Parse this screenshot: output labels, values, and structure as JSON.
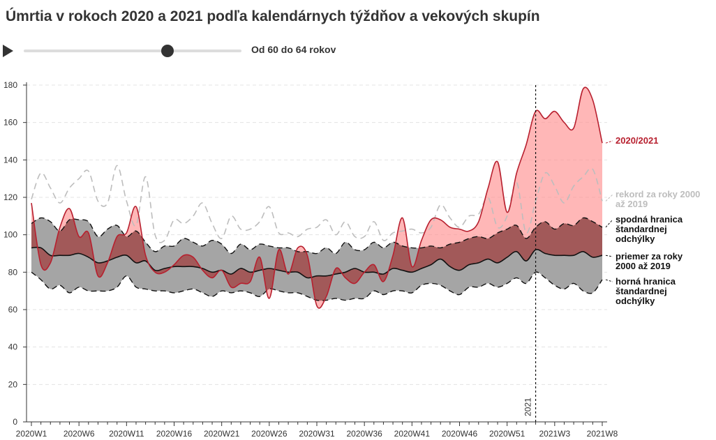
{
  "title": "Úmrtia v rokoch 2020 a 2021 podľa kalendárnych týždňov a vekových skupín",
  "slider": {
    "label": "Od 60 do 64 rokov",
    "value_fraction": 0.66
  },
  "colors": {
    "current": "#b71f2e",
    "current_fill": "#ff8a8a",
    "band": "#a5a5a5",
    "overlap": "#8d4545",
    "record": "#bdbdbd",
    "mean": "#111111"
  },
  "chart_data": {
    "type": "area",
    "ylim": [
      0,
      180
    ],
    "y_ticks": [
      "0",
      "20",
      "40",
      "60",
      "80",
      "100",
      "120",
      "140",
      "160",
      "180"
    ],
    "x_tick_labels": [
      "2020W1",
      "2020W6",
      "2020W11",
      "2020W16",
      "2020W21",
      "2020W26",
      "2020W31",
      "2020W36",
      "2020W41",
      "2020W46",
      "2020W51",
      "2021W3",
      "2021W8"
    ],
    "x_tick_weeks": [
      1,
      6,
      11,
      16,
      21,
      26,
      31,
      36,
      41,
      46,
      51,
      56,
      61
    ],
    "year_marker": {
      "week": 54,
      "label": "2021"
    },
    "series": [
      {
        "name": "2020/2021",
        "values": [
          117,
          84,
          85,
          104,
          114,
          99,
          101,
          78,
          85,
          99,
          101,
          115,
          89,
          80,
          80,
          84,
          89,
          88,
          81,
          77,
          81,
          72,
          74,
          75,
          88,
          66,
          92,
          79,
          93,
          89,
          62,
          67,
          82,
          77,
          74,
          80,
          84,
          75,
          89,
          109,
          83,
          97,
          108,
          108,
          104,
          103,
          102,
          107,
          125,
          139,
          112,
          133,
          148,
          166,
          162,
          166,
          160,
          157,
          178,
          172,
          149
        ]
      },
      {
        "name": "rekord za roky 2000 až 2019",
        "values": [
          119,
          133,
          125,
          117,
          125,
          130,
          134,
          118,
          117,
          137,
          118,
          105,
          131,
          100,
          97,
          108,
          106,
          110,
          117,
          106,
          98,
          110,
          103,
          103,
          107,
          115,
          101,
          101,
          99,
          103,
          104,
          108,
          100,
          107,
          99,
          99,
          107,
          97,
          101,
          102,
          103,
          101,
          104,
          116,
          109,
          104,
          110,
          111,
          120,
          104,
          110,
          128,
          101,
          118,
          133,
          126,
          117,
          126,
          131,
          135,
          118
        ]
      },
      {
        "name": "spodná hranica štandardnej odchýlky",
        "values": [
          106,
          109,
          107,
          102,
          108,
          108,
          107,
          99,
          103,
          105,
          99,
          102,
          96,
          91,
          94,
          94,
          98,
          96,
          94,
          97,
          95,
          90,
          95,
          92,
          95,
          94,
          93,
          93,
          91,
          91,
          90,
          93,
          90,
          96,
          92,
          92,
          96,
          93,
          96,
          94,
          93,
          93,
          94,
          93,
          95,
          96,
          98,
          99,
          98,
          101,
          103,
          105,
          98,
          104,
          107,
          103,
          106,
          105,
          109,
          107,
          104
        ]
      },
      {
        "name": "priemer za roky 2000 až 2019",
        "values": [
          93,
          93,
          89,
          89,
          89,
          90,
          88,
          85,
          86,
          88,
          89,
          85,
          86,
          81,
          82,
          83,
          83,
          83,
          82,
          80,
          81,
          79,
          82,
          80,
          81,
          82,
          81,
          80,
          80,
          77,
          78,
          78,
          79,
          80,
          82,
          80,
          80,
          79,
          82,
          81,
          80,
          82,
          84,
          87,
          83,
          81,
          84,
          85,
          87,
          85,
          88,
          91,
          86,
          92,
          90,
          89,
          89,
          89,
          91,
          88,
          89
        ]
      },
      {
        "name": "horná hranica štandardnej odchýlky",
        "values": [
          80,
          76,
          71,
          73,
          69,
          72,
          70,
          70,
          70,
          72,
          78,
          72,
          71,
          70,
          70,
          69,
          70,
          71,
          69,
          67,
          70,
          69,
          70,
          69,
          67,
          71,
          70,
          69,
          69,
          67,
          65,
          65,
          66,
          65,
          66,
          66,
          70,
          68,
          70,
          70,
          69,
          73,
          74,
          73,
          70,
          68,
          72,
          72,
          74,
          72,
          74,
          77,
          74,
          80,
          77,
          73,
          71,
          74,
          70,
          69,
          76
        ]
      }
    ]
  }
}
